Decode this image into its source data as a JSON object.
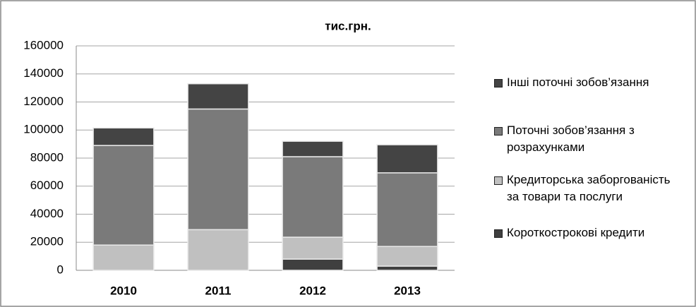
{
  "chart_data": {
    "type": "stacked-bar",
    "title": "тис.грн.",
    "categories": [
      "2010",
      "2011",
      "2012",
      "2013"
    ],
    "series": [
      {
        "name": "Короткострокові кредити",
        "color": "#3f3f3f",
        "values": [
          0,
          0,
          8000,
          3000
        ]
      },
      {
        "name": "Кредиторська заборгованість за товари  та послуги",
        "color": "#c0c0c0",
        "values": [
          18000,
          29000,
          15600,
          14000
        ]
      },
      {
        "name": "Поточні зобов’язання з розрахунками",
        "color": "#7a7a7a",
        "values": [
          71000,
          86000,
          57400,
          52500
        ]
      },
      {
        "name": "Інші поточні зобов’язання",
        "color": "#444444",
        "values": [
          12500,
          18000,
          11000,
          20000
        ]
      }
    ],
    "ylim": [
      0,
      160000
    ],
    "yticks": [
      0,
      20000,
      40000,
      60000,
      80000,
      100000,
      120000,
      140000,
      160000
    ],
    "grid": true
  }
}
